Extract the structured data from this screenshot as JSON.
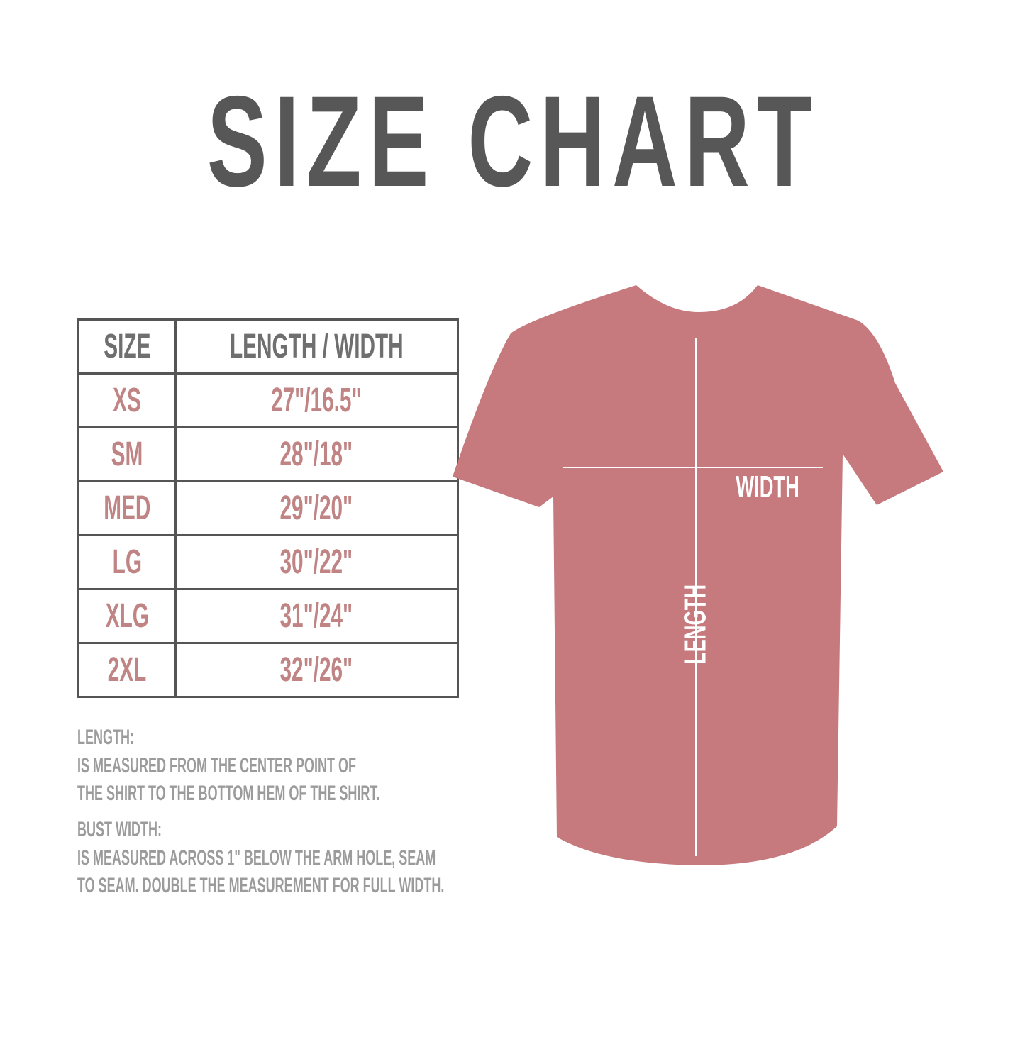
{
  "title": "SIZE CHART",
  "colors": {
    "title": "#575757",
    "header_text": "#6f6f6f",
    "value_text": "#c08484",
    "shirt": "#c77a7d",
    "notes_text": "#9b9b9b",
    "table_border": "#555555"
  },
  "table": {
    "headers": [
      "SIZE",
      "LENGTH / WIDTH"
    ],
    "rows": [
      {
        "size": "XS",
        "measure": "27\"/16.5\""
      },
      {
        "size": "SM",
        "measure": "28\"/18\""
      },
      {
        "size": "MED",
        "measure": "29\"/20\""
      },
      {
        "size": "LG",
        "measure": "30\"/22\""
      },
      {
        "size": "XLG",
        "measure": "31\"/24\""
      },
      {
        "size": "2XL",
        "measure": "32\"/26\""
      }
    ]
  },
  "notes": {
    "length_heading": "LENGTH:",
    "length_lines": [
      "IS MEASURED FROM THE CENTER POINT OF",
      "THE SHIRT TO THE BOTTOM HEM OF THE SHIRT."
    ],
    "width_heading": "BUST WIDTH:",
    "width_lines": [
      "IS MEASURED ACROSS  1\" BELOW THE ARM HOLE, SEAM",
      "TO SEAM. DOUBLE THE MEASUREMENT FOR FULL WIDTH."
    ]
  },
  "shirt_labels": {
    "width": "WIDTH",
    "length": "LENGTH"
  }
}
